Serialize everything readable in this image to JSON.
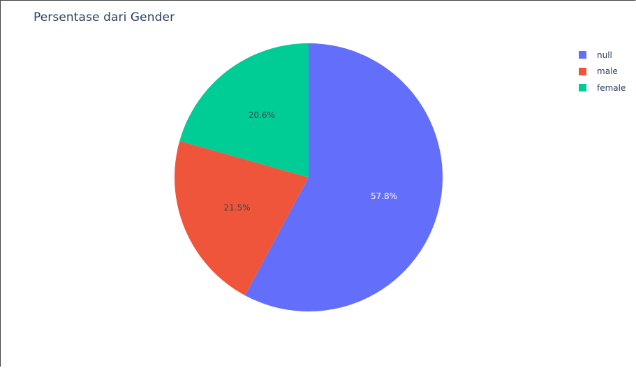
{
  "chart_data": {
    "type": "pie",
    "title": "Persentase dari Gender",
    "categories": [
      "null",
      "male",
      "female"
    ],
    "values": [
      57.8,
      21.5,
      20.6
    ],
    "labels": [
      "57.8%",
      "21.5%",
      "20.6%"
    ],
    "colors": [
      "#636efa",
      "#ef553b",
      "#00cc96"
    ],
    "label_colors": [
      "#ffffff",
      "#444444",
      "#444444"
    ],
    "legend_position": "top-right",
    "direction": "clockwise",
    "start_angle_from_top": 0
  }
}
